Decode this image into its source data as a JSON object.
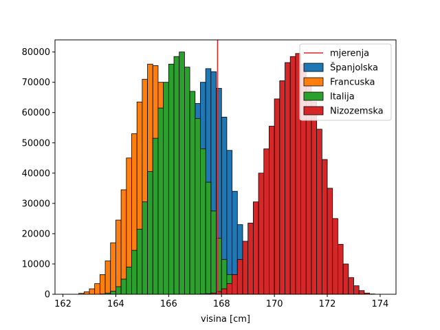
{
  "chart_data": {
    "type": "bar",
    "title": "",
    "xlabel": "visina [cm]",
    "ylabel": "",
    "xlim": [
      161.7,
      174.6
    ],
    "ylim": [
      0,
      84000
    ],
    "xticks": [
      162,
      164,
      166,
      168,
      170,
      172,
      174
    ],
    "yticks": [
      0,
      10000,
      20000,
      30000,
      40000,
      50000,
      60000,
      70000,
      80000
    ],
    "grid": false,
    "legend_position": "top-right",
    "bin_width": 0.2,
    "reference_line": {
      "name": "mjerenja",
      "x": 167.85,
      "color": "#d62728"
    },
    "series": [
      {
        "name": "Španjolska",
        "color": "#1f77b4",
        "bin_start": 165.0,
        "values": [
          100,
          300,
          800,
          2000,
          4500,
          9000,
          16000,
          26000,
          39000,
          50500,
          63000,
          70000,
          74500,
          73500,
          68000,
          58500,
          47500,
          34000,
          23000,
          14000,
          8000,
          4000,
          1700,
          600,
          150
        ]
      },
      {
        "name": "Francuska",
        "color": "#ff7f0e",
        "bin_start": 162.6,
        "values": [
          300,
          800,
          1800,
          3500,
          6500,
          11000,
          17000,
          24500,
          34500,
          45000,
          53000,
          63500,
          71000,
          76000,
          75500,
          70000,
          62000,
          52000,
          40500,
          29500,
          19500,
          12000,
          7000,
          3500,
          1500,
          600,
          200,
          60
        ]
      },
      {
        "name": "Italija",
        "color": "#2ca02c",
        "bin_start": 163.4,
        "values": [
          100,
          400,
          1000,
          2500,
          5000,
          9000,
          14500,
          21500,
          30500,
          40500,
          51500,
          61500,
          70000,
          76000,
          78500,
          80000,
          75000,
          67000,
          58000,
          48000,
          37000,
          27500,
          18500,
          11500,
          6500,
          3500,
          1600,
          600,
          200
        ]
      },
      {
        "name": "Nizozemska",
        "color": "#d62728",
        "bin_start": 167.2,
        "values": [
          100,
          200,
          400,
          900,
          1800,
          3500,
          6500,
          11500,
          17500,
          23500,
          30500,
          40000,
          48000,
          55500,
          64500,
          70500,
          76500,
          78500,
          79500,
          76000,
          70500,
          63500,
          54500,
          44500,
          35000,
          25000,
          16500,
          10000,
          5500,
          2800,
          1200,
          400,
          100
        ]
      }
    ]
  }
}
